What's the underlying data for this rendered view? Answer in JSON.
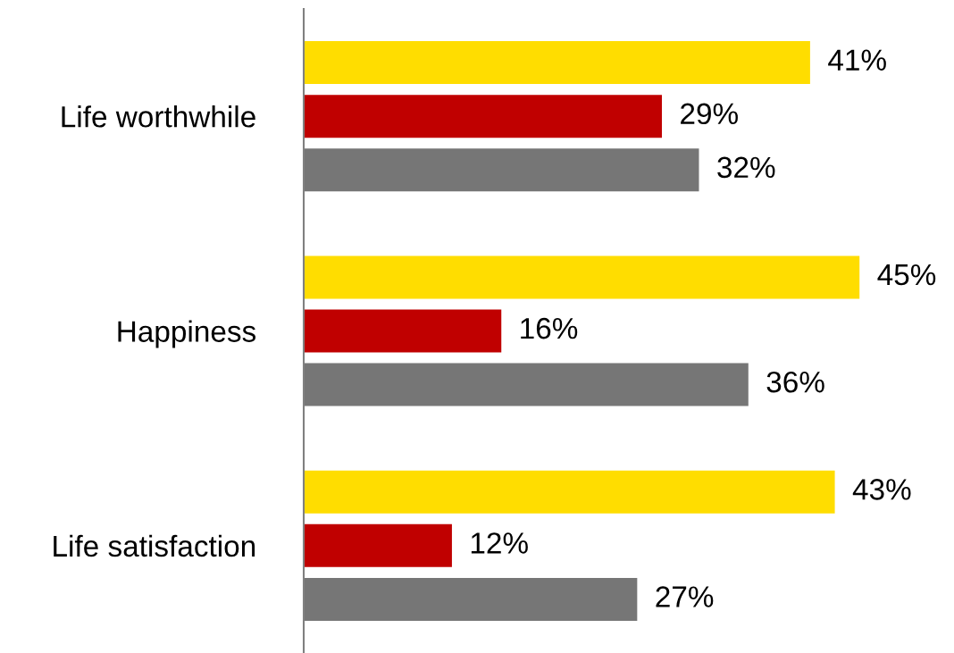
{
  "chart_data": {
    "type": "bar",
    "orientation": "horizontal",
    "categories": [
      "Life worthwhile",
      "Happiness",
      "Life satisfaction"
    ],
    "tick_labels": "y",
    "series": [
      {
        "color": "#ffdd00",
        "values": [
          41,
          45,
          43
        ],
        "value_labels": [
          "41%",
          "45%",
          "43%"
        ]
      },
      {
        "color": "#c00000",
        "values": [
          29,
          16,
          12
        ],
        "value_labels": [
          "29%",
          "16%",
          "12%"
        ]
      },
      {
        "color": "#767676",
        "values": [
          32,
          36,
          27
        ],
        "value_labels": [
          "32%",
          "36%",
          "27%"
        ]
      }
    ]
  }
}
